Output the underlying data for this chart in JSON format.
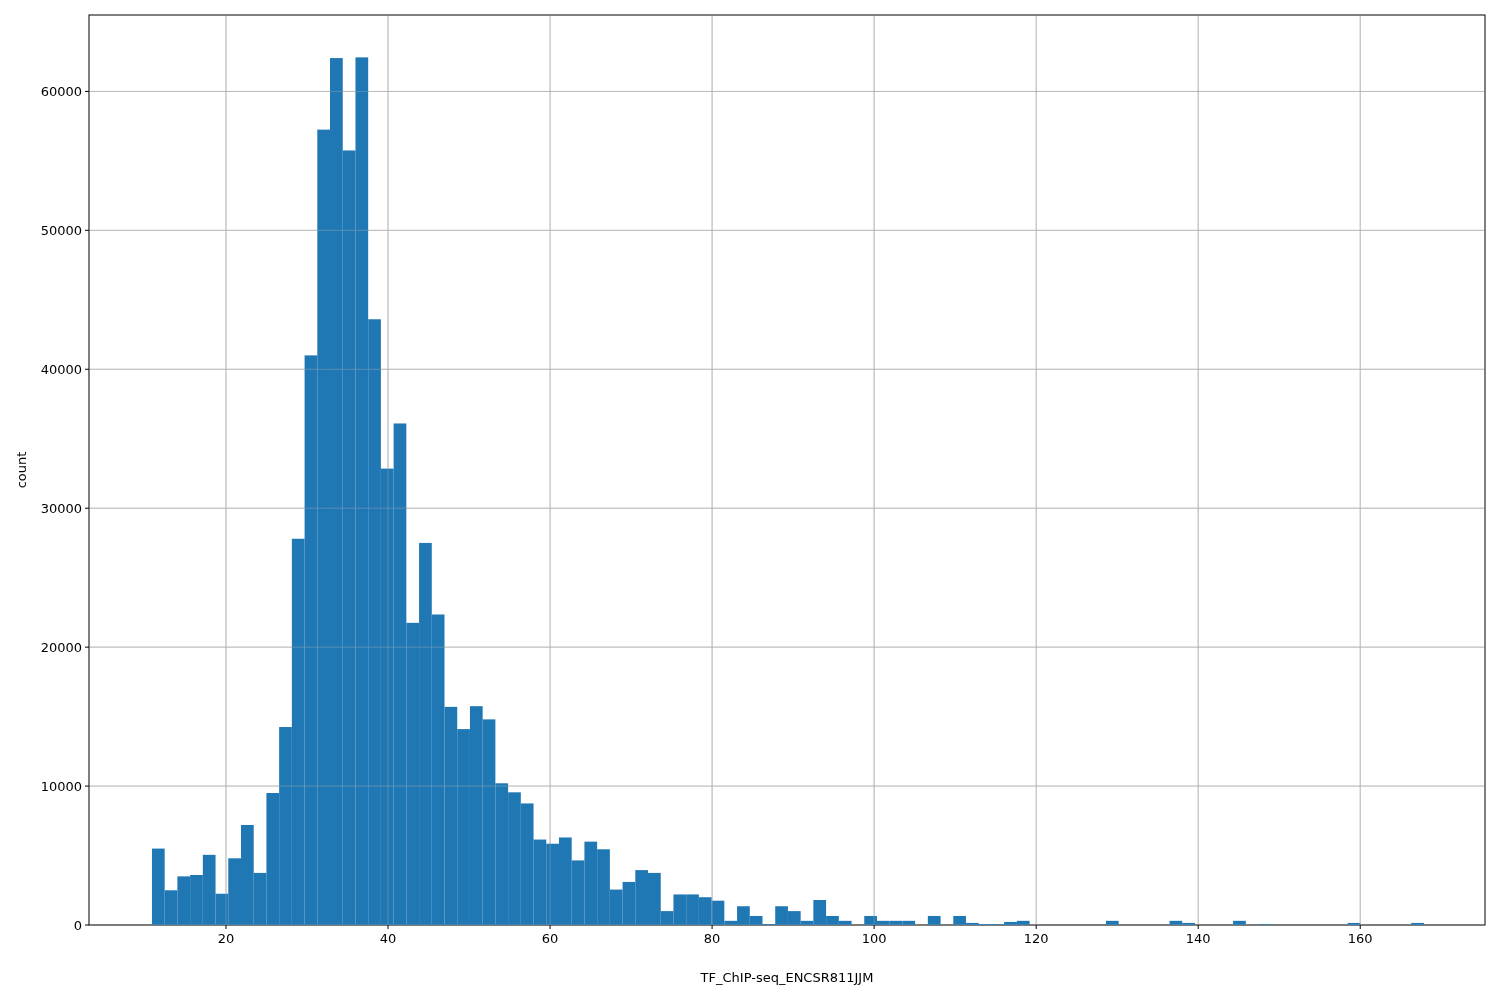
{
  "chart_data": {
    "type": "histogram",
    "xlabel": "TF_ChIP-seq_ENCSR811JJM",
    "ylabel": "count",
    "color": "#1f77b4",
    "bins": [
      10.86,
      12.43,
      14.0,
      15.57,
      17.14,
      18.71,
      20.28,
      21.85,
      23.42,
      24.99,
      26.56,
      28.13,
      29.7,
      31.27,
      32.84,
      34.41,
      35.98,
      37.55,
      39.12,
      40.69,
      42.26,
      43.83,
      45.4,
      46.97,
      48.54,
      50.11,
      51.68,
      53.25,
      54.82,
      56.39,
      57.96,
      59.53,
      61.1,
      62.67,
      64.24,
      65.81,
      67.38,
      68.95,
      70.52,
      72.09,
      73.66,
      75.23,
      76.8,
      78.37,
      79.94,
      81.51,
      83.08,
      84.65,
      86.22,
      87.79,
      89.36,
      90.93,
      92.5,
      94.07,
      95.64,
      97.21,
      98.78,
      100.35,
      101.92,
      103.49,
      105.06,
      106.63,
      108.2,
      109.77,
      111.34,
      112.91,
      114.48,
      116.05,
      117.62,
      119.19,
      120.76,
      122.33,
      123.9,
      125.47,
      127.04,
      128.61,
      130.18,
      131.75,
      133.32,
      134.89,
      136.46,
      138.03,
      139.6,
      141.17,
      142.74,
      144.31,
      145.88,
      147.45,
      149.02,
      150.59,
      152.16,
      153.73,
      155.3,
      156.87,
      158.44,
      160.01,
      161.58,
      163.15,
      164.72,
      166.29,
      167.86
    ],
    "values": [
      5500,
      2500,
      3500,
      3600,
      5050,
      2250,
      4800,
      7200,
      3750,
      9500,
      14250,
      27800,
      41000,
      57250,
      62400,
      55750,
      62450,
      43600,
      32850,
      36100,
      21750,
      27500,
      22350,
      15700,
      14100,
      15750,
      14800,
      10200,
      9550,
      8750,
      6150,
      5850,
      6300,
      4650,
      6000,
      5450,
      2550,
      3100,
      3950,
      3750,
      1000,
      2200,
      2200,
      2000,
      1750,
      300,
      1350,
      650,
      70,
      1350,
      1000,
      300,
      1800,
      650,
      300,
      0,
      650,
      300,
      300,
      300,
      0,
      650,
      0,
      650,
      150,
      70,
      70,
      220,
      300,
      0,
      0,
      0,
      0,
      0,
      0,
      300,
      0,
      0,
      0,
      0,
      300,
      150,
      0,
      0,
      0,
      300,
      0,
      70,
      0,
      0,
      0,
      0,
      0,
      0,
      150,
      0,
      0,
      0,
      0,
      150
    ],
    "xlim": [
      3.09,
      175.4
    ],
    "ylim": [
      0,
      65500
    ],
    "xticks": [
      20,
      40,
      60,
      80,
      100,
      120,
      140,
      160
    ],
    "yticks": [
      0,
      10000,
      20000,
      30000,
      40000,
      50000,
      60000
    ],
    "grid": true
  }
}
